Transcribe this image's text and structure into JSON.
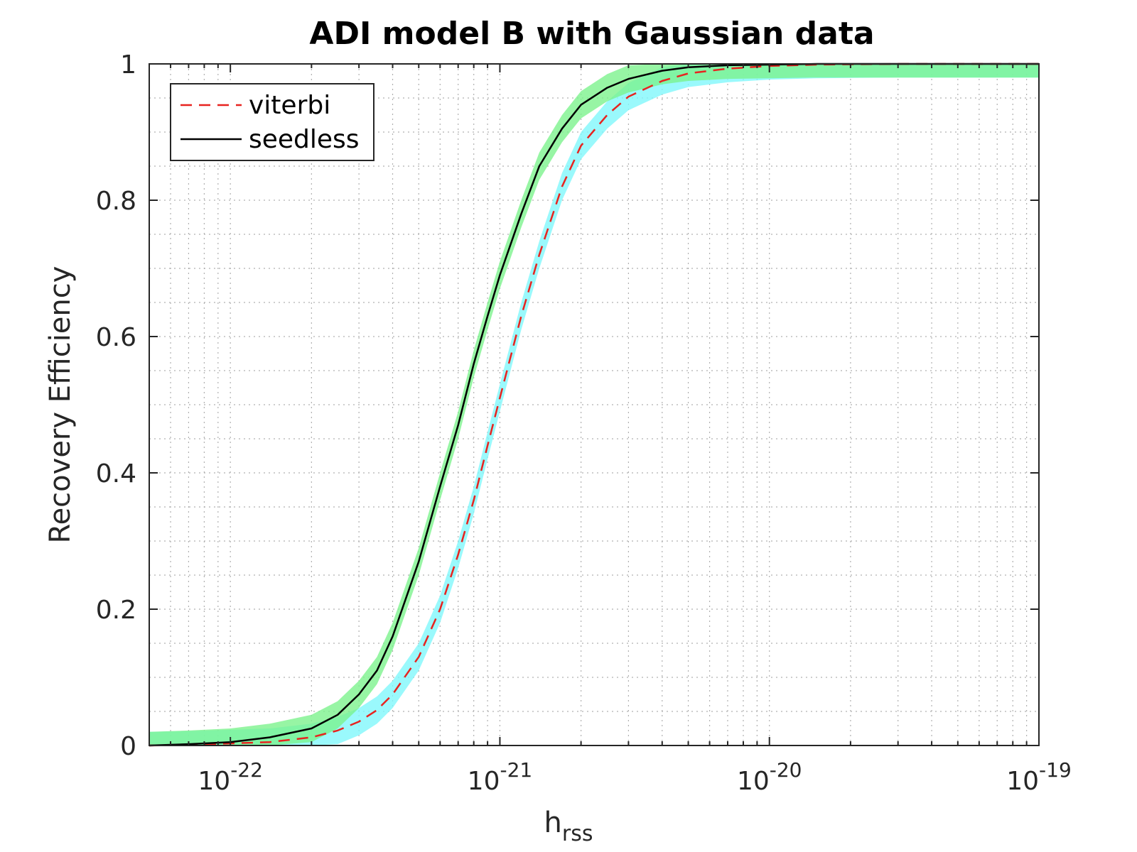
{
  "chart_data": {
    "type": "line",
    "title": "ADI model B with Gaussian data",
    "xlabel": "h",
    "xlabel_subscript": "rss",
    "ylabel": "Recovery Efficiency",
    "xscale": "log",
    "xlim": [
      5e-23,
      1e-19
    ],
    "ylim": [
      0,
      1
    ],
    "grid": true,
    "minor_grid": true,
    "legend_position": "top-left",
    "x_ticks": [
      {
        "base": "10",
        "exp": "-22",
        "value": 1e-22
      },
      {
        "base": "10",
        "exp": "-21",
        "value": 1e-21
      },
      {
        "base": "10",
        "exp": "-20",
        "value": 1e-20
      },
      {
        "base": "10",
        "exp": "-19",
        "value": 1e-19
      }
    ],
    "y_ticks": [
      {
        "label": "0",
        "value": 0
      },
      {
        "label": "0.2",
        "value": 0.2
      },
      {
        "label": "0.4",
        "value": 0.4
      },
      {
        "label": "0.6",
        "value": 0.6
      },
      {
        "label": "0.8",
        "value": 0.8
      },
      {
        "label": "1",
        "value": 1
      }
    ],
    "x": [
      5e-23,
      7e-23,
      1e-22,
      1.4e-22,
      2e-22,
      2.5e-22,
      3e-22,
      3.5e-22,
      4e-22,
      5e-22,
      6e-22,
      7e-22,
      8e-22,
      9e-22,
      1e-21,
      1.2e-21,
      1.4e-21,
      1.7e-21,
      2e-21,
      2.5e-21,
      3e-21,
      4e-21,
      5e-21,
      7e-21,
      1e-20,
      1.5e-20,
      2e-20,
      3e-20,
      5e-20,
      1e-19
    ],
    "series": [
      {
        "name": "viterbi",
        "style": "dashed",
        "color": "#e8231f",
        "band_color": "#7ef7fb",
        "values": [
          0.0,
          0.001,
          0.003,
          0.005,
          0.012,
          0.022,
          0.035,
          0.052,
          0.075,
          0.13,
          0.2,
          0.28,
          0.36,
          0.44,
          0.51,
          0.63,
          0.72,
          0.82,
          0.88,
          0.925,
          0.952,
          0.975,
          0.986,
          0.993,
          0.997,
          0.999,
          0.9995,
          1.0,
          1.0,
          1.0
        ],
        "band_halfwidth": 0.02
      },
      {
        "name": "seedless",
        "style": "solid",
        "color": "#000000",
        "band_color": "#7af28a",
        "values": [
          0.0,
          0.002,
          0.005,
          0.012,
          0.025,
          0.045,
          0.075,
          0.11,
          0.16,
          0.27,
          0.38,
          0.47,
          0.56,
          0.63,
          0.69,
          0.78,
          0.85,
          0.905,
          0.94,
          0.965,
          0.978,
          0.99,
          0.995,
          0.998,
          0.999,
          1.0,
          1.0,
          1.0,
          1.0,
          1.0
        ],
        "band_halfwidth": 0.02
      }
    ]
  }
}
